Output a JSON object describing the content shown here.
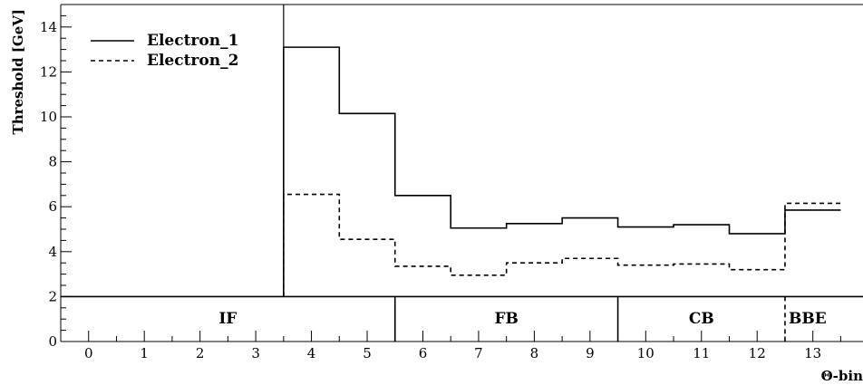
{
  "chart_data": {
    "type": "line",
    "step": true,
    "xlabel": "Θ-bin",
    "ylabel": "Threshold [GeV]",
    "xlim": [
      -0.5,
      13.9
    ],
    "ylim": [
      0,
      15
    ],
    "x_ticks": [
      0,
      1,
      2,
      3,
      4,
      5,
      6,
      7,
      8,
      9,
      10,
      11,
      12,
      13
    ],
    "y_ticks": [
      0,
      2,
      4,
      6,
      8,
      10,
      12,
      14
    ],
    "grid": false,
    "legend_position": "top-left",
    "bins": [
      0,
      1,
      2,
      3,
      4,
      5,
      6,
      7,
      8,
      9,
      10,
      11,
      12,
      13
    ],
    "series": [
      {
        "name": "Electron_1",
        "style": "solid",
        "color": "#000000",
        "values": [
          null,
          null,
          null,
          null,
          13.1,
          10.15,
          6.5,
          5.05,
          5.25,
          5.5,
          5.1,
          5.2,
          4.8,
          5.85
        ]
      },
      {
        "name": "Electron_2",
        "style": "dashed",
        "color": "#000000",
        "values": [
          null,
          null,
          null,
          null,
          6.55,
          4.55,
          3.35,
          2.95,
          3.5,
          3.7,
          3.4,
          3.45,
          3.2,
          6.15
        ]
      }
    ],
    "regions": [
      {
        "label": "IF",
        "from": -0.5,
        "to": 5.5,
        "border_style": "solid"
      },
      {
        "label": "FB",
        "from": 5.5,
        "to": 9.5,
        "border_style": "solid"
      },
      {
        "label": "CB",
        "from": 9.5,
        "to": 12.5,
        "border_style": "solid"
      },
      {
        "label": "BBE",
        "from": 12.5,
        "to": 13.9,
        "border_style": "dashed"
      }
    ],
    "region_band_top": 2,
    "vertical_line_at": 3.5
  }
}
